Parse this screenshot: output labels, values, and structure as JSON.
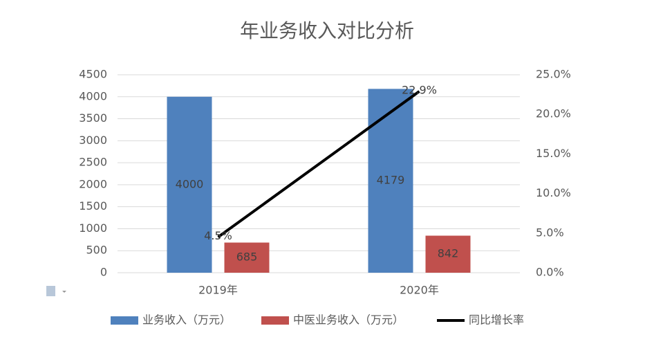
{
  "chart_data": {
    "type": "bar",
    "title": "年业务收入对比分析",
    "categories": [
      "2019年",
      "2020年"
    ],
    "series": [
      {
        "name": "业务收入（万元）",
        "type": "bar",
        "color": "#4f81bd",
        "values": [
          4000,
          4179
        ]
      },
      {
        "name": "中医业务收入（万元）",
        "type": "bar",
        "color": "#c0504d",
        "values": [
          685,
          842
        ]
      },
      {
        "name": "同比增长率",
        "type": "line",
        "axis": "y2",
        "color": "#000000",
        "values": [
          4.5,
          22.9
        ],
        "value_labels": [
          "4.5%",
          "22.9%"
        ]
      }
    ],
    "ylim": [
      0,
      4500
    ],
    "yticks": [
      0,
      500,
      1000,
      1500,
      2000,
      2500,
      3000,
      3500,
      4000,
      4500
    ],
    "y2lim": [
      0,
      25
    ],
    "y2ticks": [
      {
        "value": 0,
        "label": "0.0%"
      },
      {
        "value": 5,
        "label": "5.0%"
      },
      {
        "value": 10,
        "label": "10.0%"
      },
      {
        "value": 15,
        "label": "15.0%"
      },
      {
        "value": 20,
        "label": "20.0%"
      },
      {
        "value": 25,
        "label": "25.0%"
      }
    ],
    "grid": true
  }
}
